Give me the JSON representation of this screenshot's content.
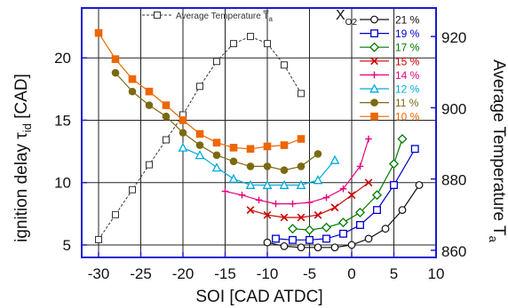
{
  "chart_data": {
    "type": "line",
    "xlabel": "SOI [CAD ATDC]",
    "ylabel_main": "ignition delay τ",
    "ylabel_sub": "id",
    "ylabel_unit": " [CAD]",
    "y2label_main": "Average Temperature T",
    "y2label_sub": "a",
    "xlim": [
      -32,
      10
    ],
    "ylim": [
      4,
      24
    ],
    "y2lim": [
      858,
      928
    ],
    "x_ticks": [
      "-30",
      "-25",
      "-20",
      "-15",
      "-10",
      "-5",
      "0",
      "5",
      "10"
    ],
    "y_ticks": [
      "5",
      "10",
      "15",
      "20"
    ],
    "y2_ticks": [
      "860",
      "880",
      "900",
      "920"
    ],
    "grid": "major",
    "legend_title": "X",
    "legend_title_sub": "O2",
    "legend_placement": "top-right",
    "avg_temp_series": {
      "name": "Average Temperature",
      "name_over": "T",
      "name_sub": "a",
      "color": "#333333",
      "x": [
        -30,
        -28,
        -26,
        -24,
        -22,
        -20,
        -18,
        -16,
        -14,
        -12,
        -10,
        -8,
        -6
      ],
      "y": [
        863,
        870,
        877,
        884,
        891,
        898,
        906,
        913,
        918,
        920,
        918,
        912,
        904
      ]
    },
    "series": [
      {
        "name": "21 %",
        "color": "#111111",
        "marker": "circle",
        "x": [
          -10,
          -8,
          -6,
          -4,
          -2,
          0,
          2,
          4,
          6,
          8
        ],
        "y": [
          5.2,
          4.9,
          4.8,
          4.8,
          4.8,
          5.0,
          5.5,
          6.3,
          7.8,
          9.8
        ]
      },
      {
        "name": "19 %",
        "color": "#0000cc",
        "marker": "square",
        "x": [
          -9,
          -7,
          -5,
          -3,
          -1,
          1,
          3,
          5,
          7.5
        ],
        "y": [
          5.5,
          5.4,
          5.4,
          5.5,
          5.9,
          6.6,
          7.8,
          9.8,
          12.7
        ]
      },
      {
        "name": "17 %",
        "color": "#007a00",
        "marker": "diamond",
        "x": [
          -7,
          -5,
          -3,
          -1,
          1,
          3,
          5,
          6
        ],
        "y": [
          6.3,
          6.2,
          6.4,
          6.8,
          7.6,
          9.0,
          11.5,
          13.5
        ]
      },
      {
        "name": "15 %",
        "color": "#cc0000",
        "marker": "x",
        "x": [
          -12,
          -10,
          -8,
          -6,
          -4,
          -2,
          0,
          2
        ],
        "y": [
          7.8,
          7.4,
          7.2,
          7.2,
          7.4,
          8.0,
          9.0,
          10.0
        ]
      },
      {
        "name": "14 %",
        "color": "#e6007e",
        "marker": "plus",
        "x": [
          -15,
          -13,
          -11,
          -9,
          -7,
          -5,
          -3,
          -1,
          1,
          2
        ],
        "y": [
          9.3,
          9.0,
          8.6,
          8.3,
          8.3,
          8.4,
          8.8,
          9.5,
          11.3,
          13.5
        ]
      },
      {
        "name": "12 %",
        "color": "#00aadd",
        "marker": "triangle",
        "x": [
          -20,
          -18,
          -16,
          -14,
          -12,
          -10,
          -8,
          -6,
          -4,
          -2
        ],
        "y": [
          12.8,
          12.2,
          11.2,
          10.3,
          9.8,
          9.8,
          9.8,
          9.8,
          10.2,
          11.8
        ]
      },
      {
        "name": "11 %",
        "color": "#7a6a10",
        "marker": "circle-filled",
        "x": [
          -28,
          -26,
          -24,
          -22,
          -20,
          -18,
          -16,
          -14,
          -12,
          -10,
          -8,
          -6,
          -4
        ],
        "y": [
          18.8,
          17.3,
          16.2,
          15.3,
          14.0,
          13.0,
          12.2,
          11.7,
          11.3,
          11.3,
          11.0,
          11.3,
          12.3
        ]
      },
      {
        "name": "10 %",
        "color": "#ee6600",
        "marker": "square-filled",
        "x": [
          -30,
          -28,
          -26,
          -24,
          -22,
          -20,
          -18,
          -16,
          -14,
          -12,
          -10,
          -8,
          -6
        ],
        "y": [
          22.0,
          19.9,
          18.3,
          17.3,
          16.2,
          15.0,
          13.9,
          13.2,
          12.8,
          12.7,
          12.9,
          13.0,
          13.5
        ]
      }
    ]
  }
}
